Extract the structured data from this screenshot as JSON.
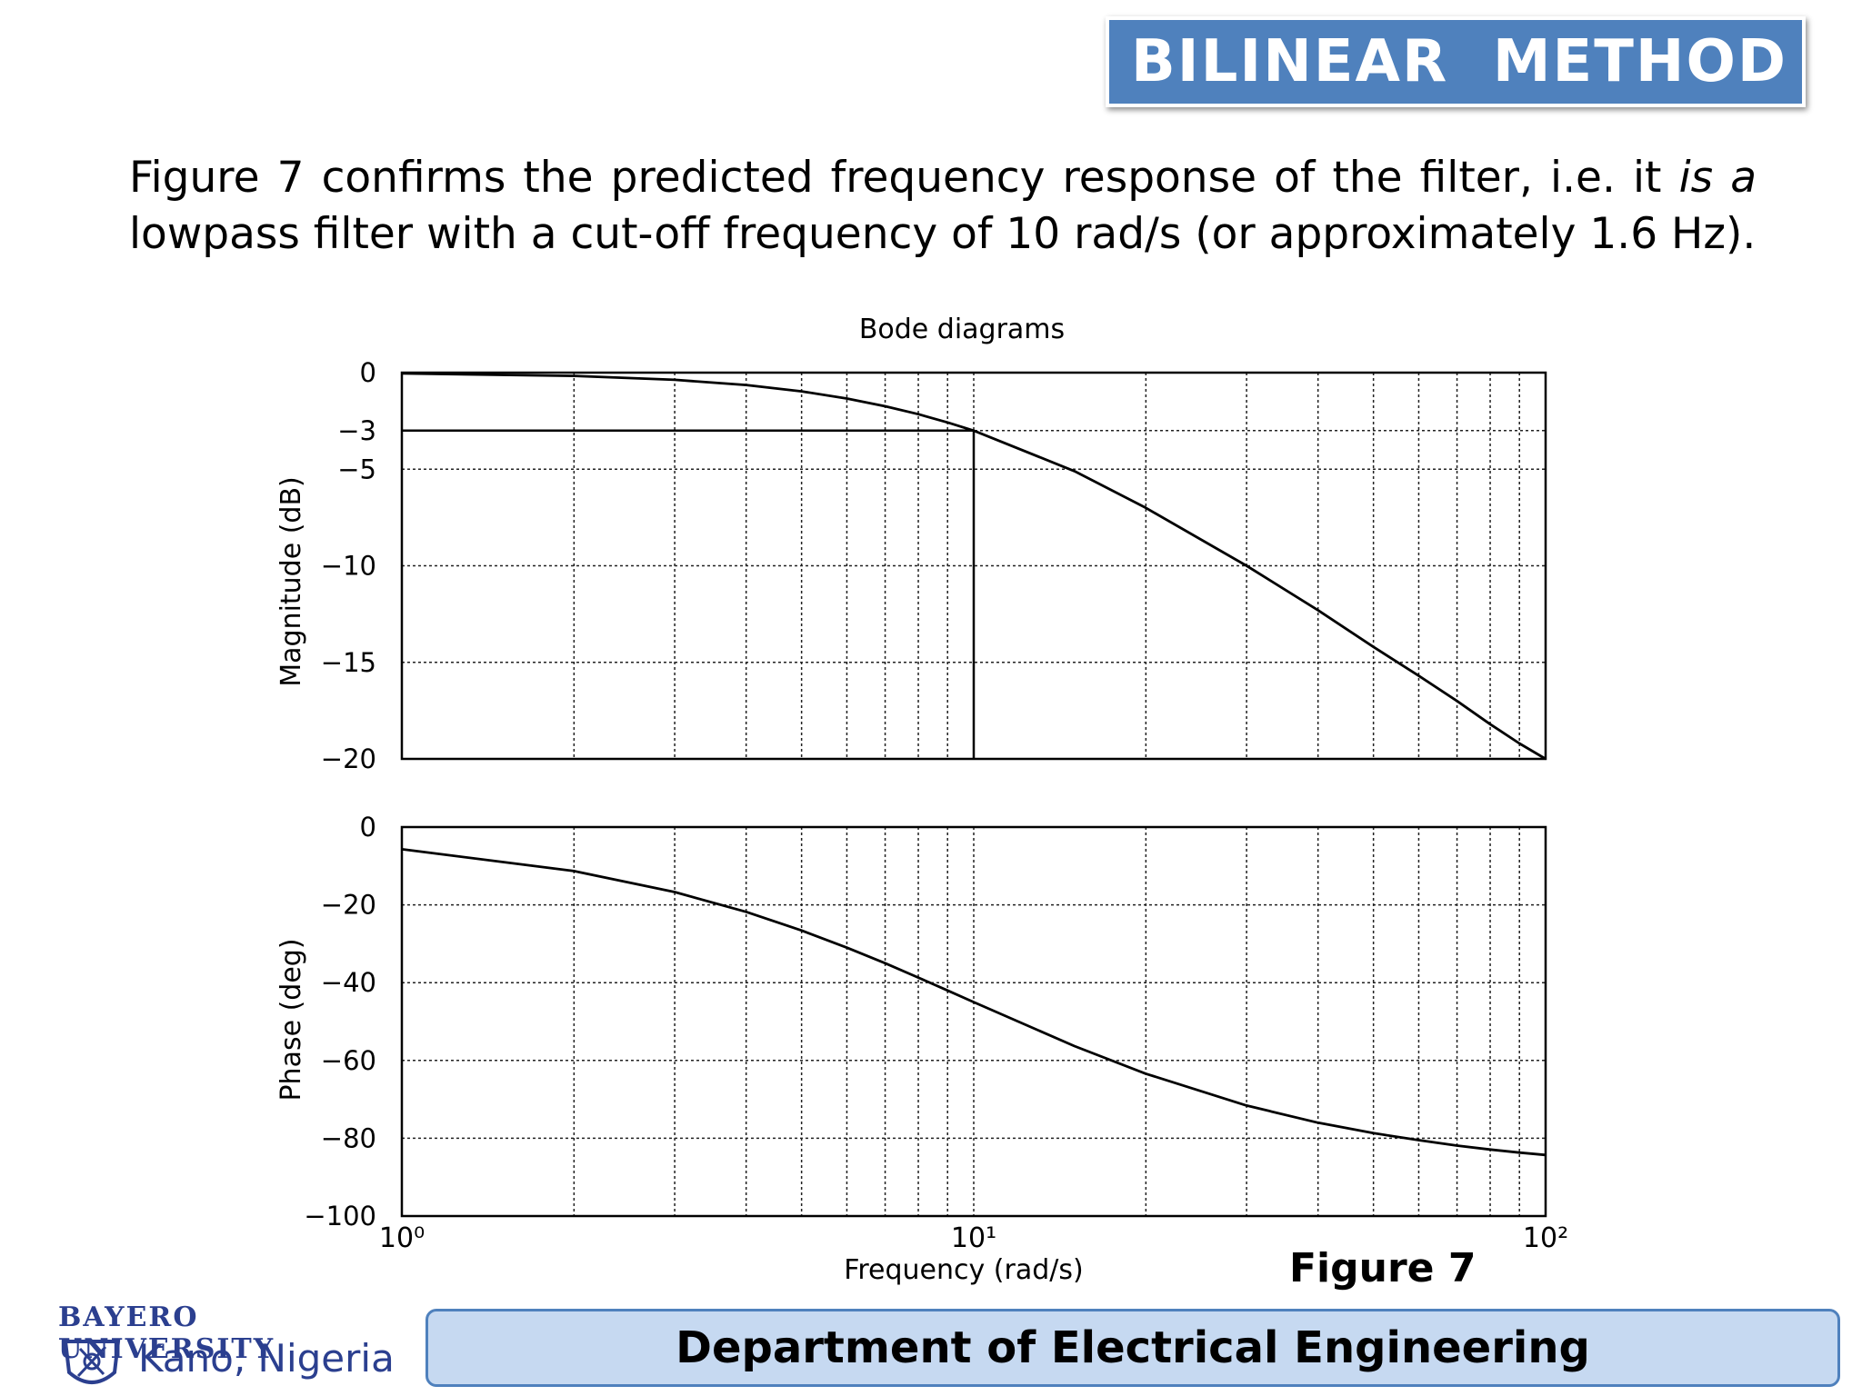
{
  "slide": {
    "title": "BILINEAR  METHOD",
    "body_pre_italic": "Figure 7 confirms the predicted frequency response of the filter, i.e. it ",
    "body_italic": "is a",
    "body_post_italic": " lowpass filter with a cut-off frequency of 10 rad/s (or approximately 1.6 Hz).",
    "figure_caption": "Figure 7",
    "footer": "Department of Electrical Engineering",
    "logo_line1": "BAYERO UNIVERSITY",
    "logo_line2": "Kano, Nigeria"
  },
  "colors": {
    "title_bg": "#4f81bd",
    "footer_bg": "#c6d9f1",
    "footer_border": "#4f81bd",
    "logo": "#2b3f8f"
  },
  "chart_data": {
    "type": "line",
    "title": "Bode diagrams",
    "xlabel": "Frequency (rad/s)",
    "x_scale": "log",
    "x_range": [
      1,
      100
    ],
    "x_tick_labels": [
      "10⁰",
      "10¹",
      "10²"
    ],
    "grid": true,
    "panels": [
      {
        "ylabel": "Magnitude (dB)",
        "ylim": [
          -20,
          0
        ],
        "y_ticks": [
          0,
          -3,
          -5,
          -10,
          -15,
          -20
        ],
        "y_tick_labels": [
          "0",
          "−3",
          "−5",
          "−10",
          "−15",
          "−20"
        ],
        "series": [
          {
            "x": [
              1,
              2,
              3,
              4,
              5,
              6,
              7,
              8,
              9,
              10,
              15,
              20,
              30,
              40,
              50,
              60,
              70,
              80,
              90,
              100
            ],
            "values": [
              -0.04,
              -0.17,
              -0.37,
              -0.64,
              -0.97,
              -1.34,
              -1.74,
              -2.15,
              -2.58,
              -3.0,
              -5.1,
              -7.0,
              -10.0,
              -12.3,
              -14.2,
              -15.7,
              -17.0,
              -18.2,
              -19.2,
              -20.0
            ]
          }
        ],
        "annotation": {
          "x": 10,
          "y": -3
        }
      },
      {
        "ylabel": "Phase (deg)",
        "ylim": [
          -100,
          0
        ],
        "y_ticks": [
          0,
          -20,
          -40,
          -60,
          -80,
          -100
        ],
        "y_tick_labels": [
          "0",
          "−20",
          "−40",
          "−60",
          "−80",
          "−100"
        ],
        "series": [
          {
            "x": [
              1,
              2,
              3,
              4,
              5,
              6,
              7,
              8,
              9,
              10,
              15,
              20,
              30,
              40,
              50,
              60,
              70,
              80,
              90,
              100
            ],
            "values": [
              -5.7,
              -11.3,
              -16.7,
              -21.8,
              -26.6,
              -31.0,
              -35.0,
              -38.7,
              -42.0,
              -45.0,
              -56.3,
              -63.4,
              -71.6,
              -76.0,
              -78.7,
              -80.5,
              -81.9,
              -82.9,
              -83.7,
              -84.3
            ]
          }
        ]
      }
    ]
  }
}
